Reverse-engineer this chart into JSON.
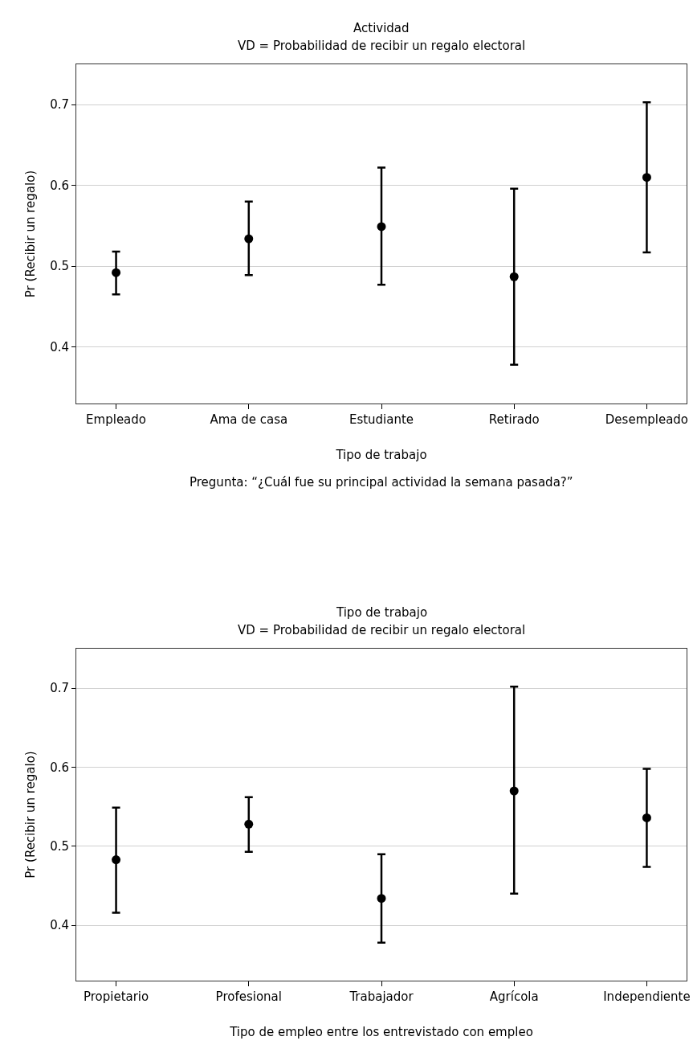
{
  "chart_data": [
    {
      "type": "scatter",
      "title": "Actividad",
      "subtitle": "VD = Probabilidad de recibir un regalo electoral",
      "xlabel": "Tipo de trabajo",
      "ylabel": "Pr (Recibir un regalo)",
      "annotations": [
        "Pregunta: “¿Cuál fue su principal actividad la semana pasada?”"
      ],
      "categories": [
        "Empleado",
        "Ama de casa",
        "Estudiante",
        "Retirado",
        "Desempleado"
      ],
      "series": [
        {
          "color": "#000000",
          "values": [
            0.492,
            0.534,
            0.549,
            0.487,
            0.61
          ],
          "errors": [
            [
              0.465,
              0.518
            ],
            [
              0.489,
              0.58
            ],
            [
              0.477,
              0.622
            ],
            [
              0.378,
              0.596
            ],
            [
              0.517,
              0.703
            ]
          ]
        }
      ],
      "ylim": [
        0.33,
        0.75
      ],
      "yticks": [
        0.4,
        0.5,
        0.6,
        0.7
      ],
      "grid": "y",
      "marker": "circle"
    },
    {
      "type": "scatter",
      "title": "Tipo de trabajo",
      "subtitle": "VD = Probabilidad de recibir un regalo electoral",
      "xlabel": "Tipo de empleo entre los entrevistado con empleo",
      "ylabel": "Pr (Recibir un regalo)",
      "categories": [
        "Propietario",
        "Profesional",
        "Trabajador",
        "Agrícola",
        "Independiente"
      ],
      "series": [
        {
          "color": "#000000",
          "values": [
            0.483,
            0.528,
            0.434,
            0.57,
            0.536
          ],
          "errors": [
            [
              0.416,
              0.549
            ],
            [
              0.493,
              0.562
            ],
            [
              0.378,
              0.49
            ],
            [
              0.44,
              0.702
            ],
            [
              0.474,
              0.598
            ]
          ]
        }
      ],
      "ylim": [
        0.33,
        0.75
      ],
      "yticks": [
        0.4,
        0.5,
        0.6,
        0.7
      ],
      "grid": "y",
      "marker": "circle"
    }
  ]
}
